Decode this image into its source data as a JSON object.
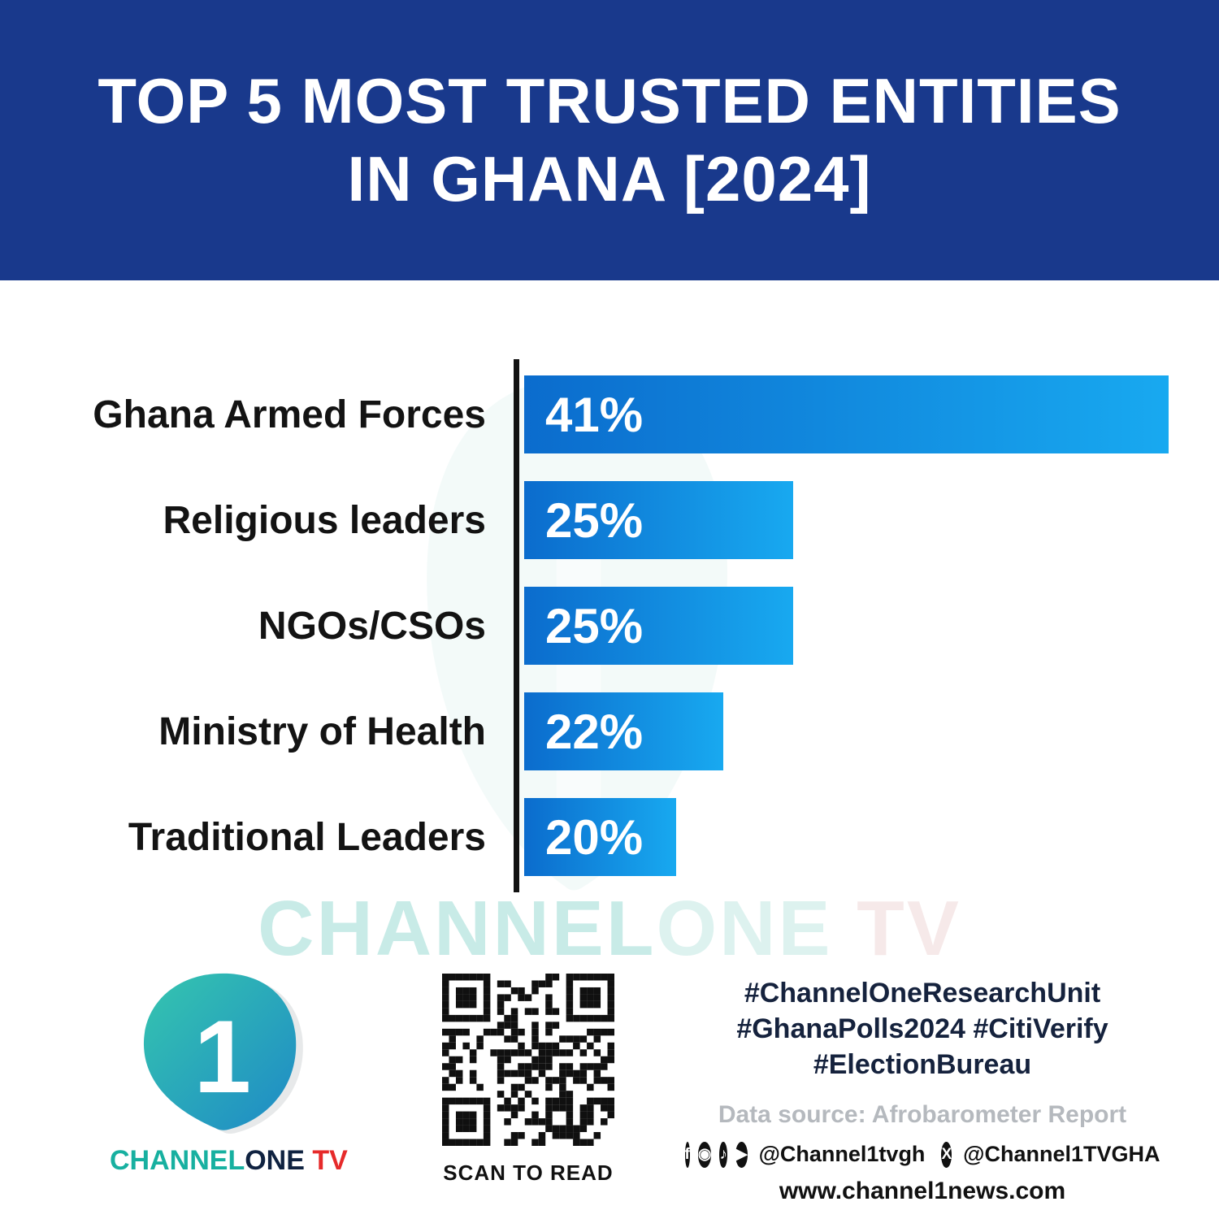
{
  "header": {
    "title_line1": "TOP 5 MOST TRUSTED ENTITIES",
    "title_line2": "IN GHANA [2024]",
    "bg_color": "#19398c"
  },
  "chart_data": {
    "type": "bar",
    "orientation": "horizontal",
    "title": "Top 5 Most Trusted Entities in Ghana [2024]",
    "categories": [
      "Ghana Armed Forces",
      "Religious leaders",
      "NGOs/CSOs",
      "Ministry of Health",
      "Traditional Leaders"
    ],
    "values": [
      41,
      25,
      25,
      22,
      20
    ],
    "labels": [
      "41%",
      "25%",
      "25%",
      "22%",
      "20%"
    ],
    "xlim": [
      13.5,
      41
    ],
    "bar_widths_pct": [
      100,
      41.8,
      41.8,
      30.9,
      23.6
    ],
    "bar_gradient": [
      "#0b6ccd",
      "#18a9f0"
    ],
    "axis_color": "#121212",
    "grid": false,
    "legend": false
  },
  "watermark": {
    "channel": "CHANNEL",
    "one": "ONE",
    "tv": " TV"
  },
  "footer": {
    "logo": {
      "numeral": "1",
      "channel": "CHANNEL",
      "one": "ONE",
      "tv": " TV"
    },
    "qr_caption": "SCAN TO READ",
    "hashtags_line1": "#ChannelOneResearchUnit",
    "hashtags_line2": "#GhanaPolls2024 #CitiVerify",
    "hashtags_line3": "#ElectionBureau",
    "data_source": "Data source: Afrobarometer Report",
    "social_icons": [
      "facebook-icon",
      "instagram-icon",
      "tiktok-icon",
      "youtube-icon",
      "x-icon"
    ],
    "handle1": "@Channel1tvgh",
    "handle2": "@Channel1TVGHA",
    "website": "www.channel1news.com"
  },
  "colors": {
    "header_bg": "#19398c",
    "bar_start": "#0b6ccd",
    "bar_end": "#18a9f0",
    "logo_teal": "#17b0a0",
    "logo_navy": "#0f2240",
    "tv_red": "#e62a2a",
    "hashtag_navy": "#15223d",
    "source_gray": "#b5b9be",
    "watermark_teal": "#c8ebe7"
  }
}
